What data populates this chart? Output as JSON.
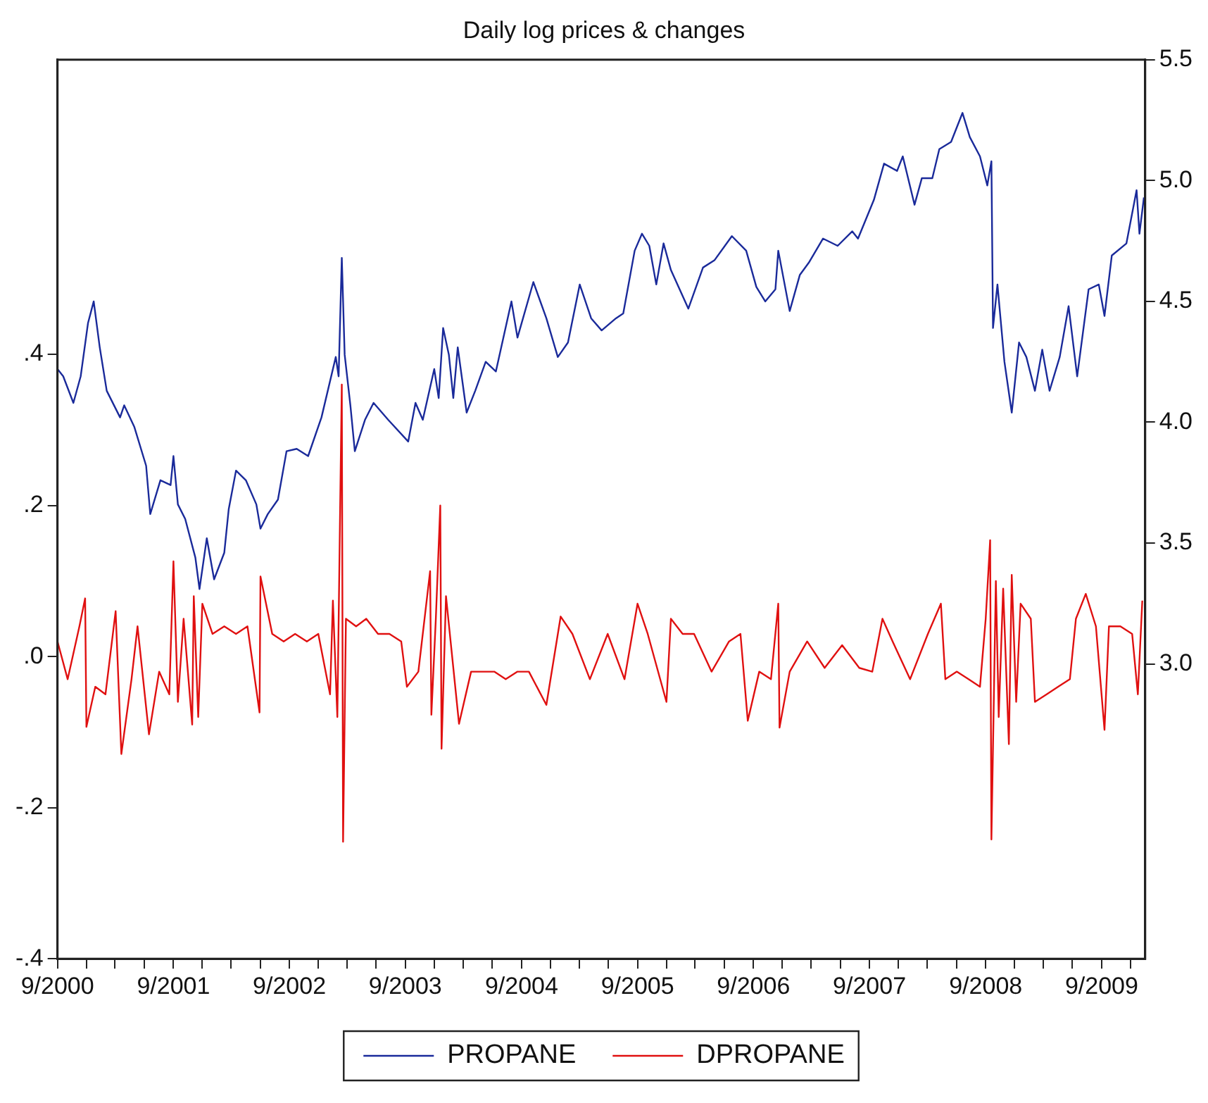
{
  "chart_data": {
    "type": "line",
    "title": "Daily log prices & changes",
    "legend": "bottom",
    "grid": false,
    "xlim": [
      "2000-09-01",
      "2010-01-16"
    ],
    "xticks": [
      {
        "value": "2000-09-01",
        "label": "9/2000"
      },
      {
        "value": "2000-12-01",
        "label": null
      },
      {
        "value": "2001-03-01",
        "label": null
      },
      {
        "value": "2001-06-01",
        "label": null
      },
      {
        "value": "2001-09-01",
        "label": "9/2001"
      },
      {
        "value": "2001-12-01",
        "label": null
      },
      {
        "value": "2002-03-01",
        "label": null
      },
      {
        "value": "2002-06-01",
        "label": null
      },
      {
        "value": "2002-09-01",
        "label": "9/2002"
      },
      {
        "value": "2002-12-01",
        "label": null
      },
      {
        "value": "2003-03-01",
        "label": null
      },
      {
        "value": "2003-06-01",
        "label": null
      },
      {
        "value": "2003-09-01",
        "label": "9/2003"
      },
      {
        "value": "2003-12-01",
        "label": null
      },
      {
        "value": "2004-03-01",
        "label": null
      },
      {
        "value": "2004-06-01",
        "label": null
      },
      {
        "value": "2004-09-01",
        "label": "9/2004"
      },
      {
        "value": "2004-12-01",
        "label": null
      },
      {
        "value": "2005-03-01",
        "label": null
      },
      {
        "value": "2005-06-01",
        "label": null
      },
      {
        "value": "2005-09-01",
        "label": "9/2005"
      },
      {
        "value": "2005-12-01",
        "label": null
      },
      {
        "value": "2006-03-01",
        "label": null
      },
      {
        "value": "2006-06-01",
        "label": null
      },
      {
        "value": "2006-09-01",
        "label": "9/2006"
      },
      {
        "value": "2006-12-01",
        "label": null
      },
      {
        "value": "2007-03-01",
        "label": null
      },
      {
        "value": "2007-06-01",
        "label": null
      },
      {
        "value": "2007-09-01",
        "label": "9/2007"
      },
      {
        "value": "2007-12-01",
        "label": null
      },
      {
        "value": "2008-03-01",
        "label": null
      },
      {
        "value": "2008-06-01",
        "label": null
      },
      {
        "value": "2008-09-01",
        "label": "9/2008"
      },
      {
        "value": "2008-12-01",
        "label": null
      },
      {
        "value": "2009-03-01",
        "label": null
      },
      {
        "value": "2009-06-01",
        "label": null
      },
      {
        "value": "2009-09-01",
        "label": "9/2009"
      },
      {
        "value": "2009-12-01",
        "label": null
      }
    ],
    "ylim": [
      -0.4,
      0.79
    ],
    "yticks": [
      {
        "value": -0.4,
        "label": "-.4"
      },
      {
        "value": -0.2,
        "label": "-.2"
      },
      {
        "value": 0,
        "label": ".0"
      },
      {
        "value": 0.2,
        "label": ".2"
      },
      {
        "value": 0.4,
        "label": ".4"
      }
    ],
    "y2lim": [
      1.78,
      5.5
    ],
    "y2ticks": [
      {
        "value": 3,
        "label": "3.0"
      },
      {
        "value": 3.5,
        "label": "3.5"
      },
      {
        "value": 4,
        "label": "4.0"
      },
      {
        "value": 4.5,
        "label": "4.5"
      },
      {
        "value": 5,
        "label": "5.0"
      },
      {
        "value": 5.5,
        "label": "5.5"
      }
    ],
    "series": [
      {
        "name": "PROPANE",
        "color": "#1a2a9a",
        "axis": "y2",
        "x": [
          "2000-09-01",
          "2000-09-19",
          "2000-10-21",
          "2000-11-13",
          "2000-12-06",
          "2000-12-24",
          "2001-01-12",
          "2001-02-03",
          "2001-03-17",
          "2001-03-30",
          "2001-05-01",
          "2001-06-07",
          "2001-06-20",
          "2001-07-22",
          "2001-08-23",
          "2001-09-01",
          "2001-09-15",
          "2001-10-08",
          "2001-11-09",
          "2001-11-22",
          "2001-12-15",
          "2002-01-07",
          "2002-02-08",
          "2002-02-22",
          "2002-03-17",
          "2002-04-17",
          "2002-05-20",
          "2002-06-02",
          "2002-06-25",
          "2002-07-27",
          "2002-08-23",
          "2002-09-24",
          "2002-10-30",
          "2002-12-11",
          "2003-01-25",
          "2003-02-03",
          "2003-02-13",
          "2003-02-22",
          "2003-03-12",
          "2003-03-26",
          "2003-04-27",
          "2003-05-24",
          "2003-07-09",
          "2003-09-10",
          "2003-10-03",
          "2003-10-26",
          "2003-12-01",
          "2003-12-15",
          "2003-12-29",
          "2004-01-16",
          "2004-01-30",
          "2004-02-13",
          "2004-03-12",
          "2004-04-08",
          "2004-05-11",
          "2004-06-12",
          "2004-07-31",
          "2004-08-19",
          "2004-10-08",
          "2004-11-18",
          "2004-12-24",
          "2005-01-25",
          "2005-03-03",
          "2005-04-08",
          "2005-05-11",
          "2005-06-25",
          "2005-07-18",
          "2005-08-23",
          "2005-09-15",
          "2005-10-08",
          "2005-10-30",
          "2005-11-22",
          "2005-12-15",
          "2006-02-08",
          "2006-03-26",
          "2006-05-01",
          "2006-06-25",
          "2006-08-09",
          "2006-09-10",
          "2006-10-08",
          "2006-11-09",
          "2006-11-18",
          "2006-12-24",
          "2007-01-25",
          "2007-02-22",
          "2007-04-08",
          "2007-05-24",
          "2007-07-09",
          "2007-07-27",
          "2007-09-15",
          "2007-10-17",
          "2007-11-27",
          "2007-12-15",
          "2008-01-21",
          "2008-02-13",
          "2008-03-17",
          "2008-04-08",
          "2008-05-15",
          "2008-06-20",
          "2008-07-13",
          "2008-08-14",
          "2008-09-06",
          "2008-09-19",
          "2008-09-24",
          "2008-10-08",
          "2008-10-30",
          "2008-11-22",
          "2008-12-15",
          "2009-01-07",
          "2009-02-03",
          "2009-02-26",
          "2009-03-21",
          "2009-04-22",
          "2009-05-20",
          "2009-06-16",
          "2009-07-22",
          "2009-08-23",
          "2009-09-10",
          "2009-10-03",
          "2009-11-18",
          "2009-12-20",
          "2009-12-29",
          "2010-01-12"
        ],
        "values": [
          4.22,
          4.19,
          4.08,
          4.19,
          4.41,
          4.5,
          4.31,
          4.13,
          4.02,
          4.07,
          3.98,
          3.82,
          3.62,
          3.76,
          3.74,
          3.86,
          3.66,
          3.6,
          3.44,
          3.31,
          3.52,
          3.35,
          3.46,
          3.64,
          3.8,
          3.76,
          3.66,
          3.56,
          3.62,
          3.68,
          3.88,
          3.89,
          3.86,
          4.02,
          4.27,
          4.19,
          4.68,
          4.28,
          4.07,
          3.88,
          4.01,
          4.08,
          4.01,
          3.92,
          4.08,
          4.01,
          4.22,
          4.1,
          4.39,
          4.28,
          4.1,
          4.31,
          4.04,
          4.13,
          4.25,
          4.21,
          4.5,
          4.35,
          4.58,
          4.43,
          4.27,
          4.33,
          4.57,
          4.43,
          4.38,
          4.43,
          4.45,
          4.71,
          4.78,
          4.73,
          4.57,
          4.74,
          4.63,
          4.47,
          4.64,
          4.67,
          4.77,
          4.71,
          4.56,
          4.5,
          4.55,
          4.71,
          4.46,
          4.61,
          4.66,
          4.76,
          4.73,
          4.79,
          4.76,
          4.92,
          5.07,
          5.04,
          5.1,
          4.9,
          5.01,
          5.01,
          5.13,
          5.16,
          5.28,
          5.18,
          5.1,
          4.98,
          5.08,
          4.39,
          4.57,
          4.25,
          4.04,
          4.33,
          4.27,
          4.13,
          4.3,
          4.13,
          4.27,
          4.48,
          4.19,
          4.55,
          4.57,
          4.44,
          4.69,
          4.74,
          4.96,
          4.78,
          4.93
        ]
      },
      {
        "name": "DPROPANE",
        "color": "#e01010",
        "x": [
          "2000-09-01",
          "2000-10-03",
          "2000-11-09",
          "2000-11-27",
          "2000-12-01",
          "2000-12-29",
          "2001-01-30",
          "2001-03-03",
          "2001-03-21",
          "2001-04-22",
          "2001-05-11",
          "2001-06-16",
          "2001-07-18",
          "2001-08-19",
          "2001-09-01",
          "2001-09-15",
          "2001-10-03",
          "2001-10-30",
          "2001-11-04",
          "2001-11-18",
          "2001-12-01",
          "2002-01-02",
          "2002-02-08",
          "2002-03-17",
          "2002-04-22",
          "2002-05-30",
          "2002-06-02",
          "2002-07-09",
          "2002-08-14",
          "2002-09-19",
          "2002-10-26",
          "2002-12-01",
          "2003-01-07",
          "2003-01-16",
          "2003-01-30",
          "2003-02-13",
          "2003-02-17",
          "2003-02-26",
          "2003-03-30",
          "2003-05-01",
          "2003-06-07",
          "2003-07-13",
          "2003-08-19",
          "2003-09-06",
          "2003-10-12",
          "2003-11-18",
          "2003-11-22",
          "2003-12-06",
          "2003-12-20",
          "2003-12-24",
          "2004-01-07",
          "2004-02-17",
          "2004-03-26",
          "2004-05-01",
          "2004-06-07",
          "2004-07-13",
          "2004-08-19",
          "2004-09-24",
          "2004-11-18",
          "2005-01-02",
          "2005-02-08",
          "2005-04-04",
          "2005-05-30",
          "2005-07-22",
          "2005-09-01",
          "2005-10-03",
          "2005-12-01",
          "2005-12-15",
          "2006-01-21",
          "2006-02-26",
          "2006-04-22",
          "2006-06-16",
          "2006-07-22",
          "2006-08-14",
          "2006-09-19",
          "2006-10-26",
          "2006-11-18",
          "2006-11-22",
          "2006-12-24",
          "2007-02-17",
          "2007-04-13",
          "2007-06-07",
          "2007-07-31",
          "2007-09-10",
          "2007-10-12",
          "2007-11-13",
          "2008-01-07",
          "2008-03-03",
          "2008-04-13",
          "2008-04-27",
          "2008-06-02",
          "2008-07-09",
          "2008-08-14",
          "2008-09-01",
          "2008-09-15",
          "2008-09-19",
          "2008-10-03",
          "2008-10-12",
          "2008-10-26",
          "2008-11-13",
          "2008-11-22",
          "2008-12-06",
          "2008-12-20",
          "2009-01-21",
          "2009-02-03",
          "2009-03-12",
          "2009-04-17",
          "2009-05-24",
          "2009-06-12",
          "2009-07-13",
          "2009-08-14",
          "2009-09-10",
          "2009-09-24",
          "2009-10-30",
          "2009-12-06",
          "2009-12-24",
          "2010-01-07"
        ],
        "values": [
          0.02,
          -0.03,
          0.04,
          0.077,
          -0.093,
          -0.04,
          -0.05,
          0.06,
          -0.129,
          -0.03,
          0.04,
          -0.103,
          -0.02,
          -0.05,
          0.126,
          -0.06,
          0.05,
          -0.09,
          0.08,
          -0.08,
          0.07,
          0.03,
          0.04,
          0.03,
          0.04,
          -0.074,
          0.106,
          0.03,
          0.02,
          0.03,
          0.02,
          0.03,
          -0.05,
          0.074,
          -0.08,
          0.36,
          -0.245,
          0.05,
          0.04,
          0.05,
          0.03,
          0.03,
          0.02,
          -0.04,
          -0.02,
          0.113,
          -0.077,
          0.05,
          0.2,
          -0.122,
          0.08,
          -0.089,
          -0.02,
          -0.02,
          -0.02,
          -0.03,
          -0.02,
          -0.02,
          -0.064,
          0.053,
          0.03,
          -0.03,
          0.03,
          -0.03,
          0.07,
          0.03,
          -0.06,
          0.05,
          0.03,
          0.03,
          -0.02,
          0.02,
          0.03,
          -0.085,
          -0.02,
          -0.03,
          0.07,
          -0.094,
          -0.02,
          0.02,
          -0.015,
          0.015,
          -0.015,
          -0.02,
          0.05,
          0.02,
          -0.03,
          0.03,
          0.07,
          -0.03,
          -0.02,
          -0.03,
          -0.04,
          0.05,
          0.154,
          -0.242,
          0.1,
          -0.08,
          0.09,
          -0.116,
          0.108,
          -0.06,
          0.07,
          0.05,
          -0.06,
          -0.05,
          -0.04,
          -0.03,
          0.05,
          0.083,
          0.04,
          -0.097,
          0.04,
          0.04,
          0.03,
          -0.05,
          0.074
        ]
      }
    ]
  }
}
